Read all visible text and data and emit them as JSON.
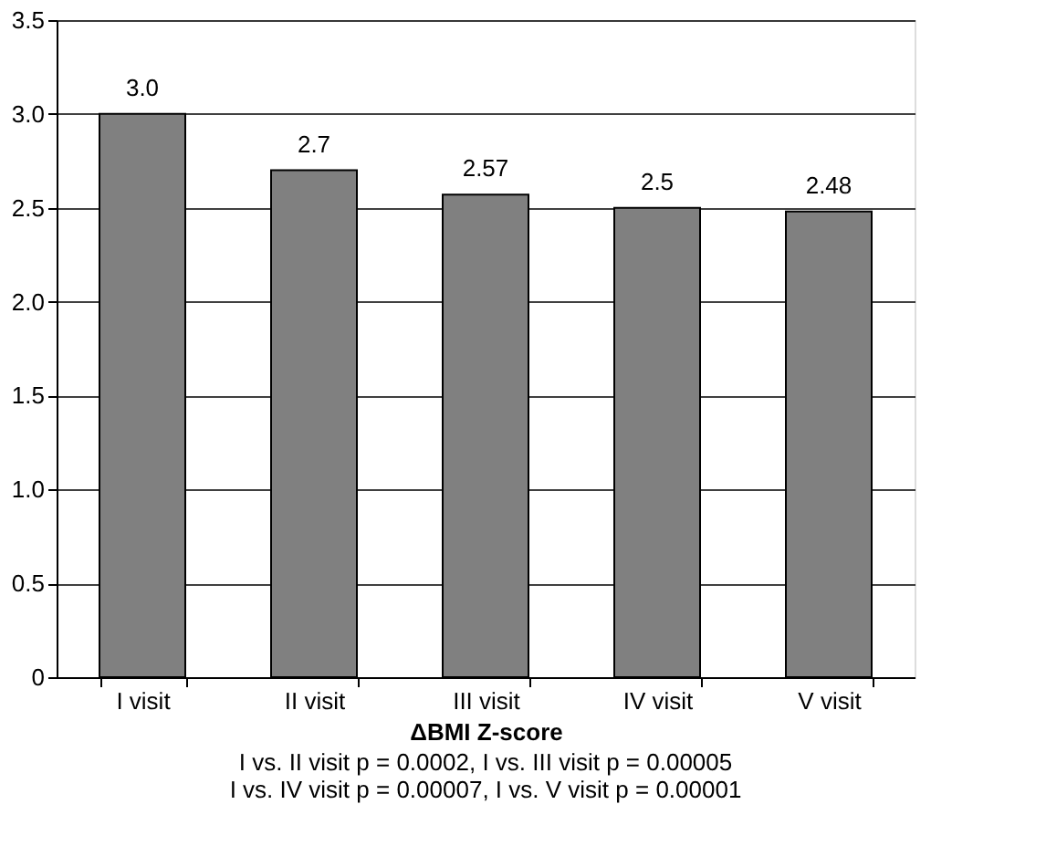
{
  "chart_data": {
    "type": "bar",
    "categories": [
      "I visit",
      "II visit",
      "III visit",
      "IV visit",
      "V visit"
    ],
    "values": [
      3.0,
      2.7,
      2.57,
      2.5,
      2.48
    ],
    "value_labels": [
      "3.0",
      "2.7",
      "2.57",
      "2.5",
      "2.48"
    ],
    "color": "#808080",
    "xlabel": "ΔBMI Z-score",
    "ylim": [
      0,
      3.5
    ],
    "yticks": [
      0,
      {
        "value": 0.5,
        "label": "0.5"
      },
      {
        "value": 1,
        "label": "1.0"
      },
      {
        "value": 1.5,
        "label": "1.5"
      },
      {
        "value": 2,
        "label": "2.0"
      },
      {
        "value": 2.5,
        "label": "2.5"
      },
      {
        "value": 3,
        "label": "3.0"
      },
      {
        "value": 3.5,
        "label": "3.5"
      }
    ],
    "grid": "y",
    "annotations": [
      "I vs. II visit p = 0.0002, I vs. III visit p = 0.00005",
      "I vs. IV visit p = 0.00007, I vs. V visit  p = 0.00001"
    ]
  }
}
